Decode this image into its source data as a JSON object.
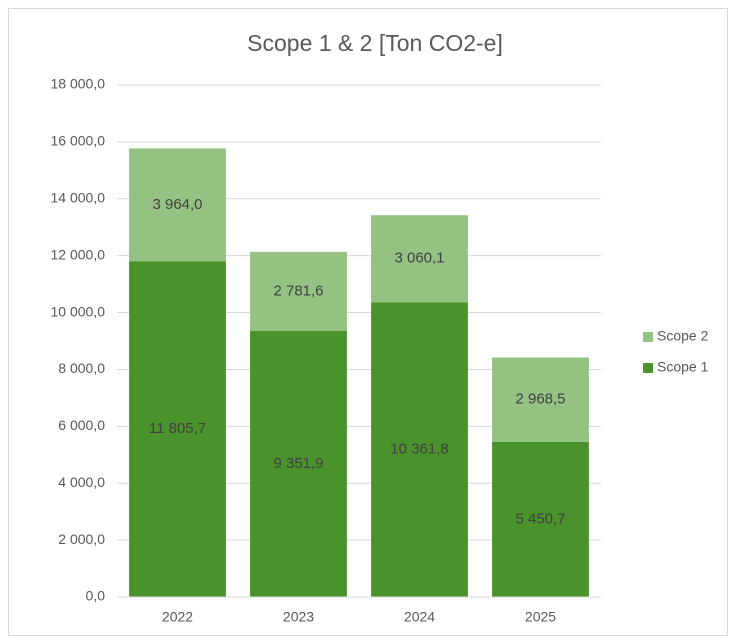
{
  "chart_data": {
    "type": "stacked_bar",
    "title": "Scope 1 & 2 [Ton CO2-e]",
    "categories": [
      "2022",
      "2023",
      "2024",
      "2025"
    ],
    "series": [
      {
        "name": "Scope 1",
        "color": "#4a922c",
        "values": [
          11805.7,
          9351.9,
          10361.8,
          5450.7
        ],
        "value_labels": [
          "11 805,7",
          "9 351,9",
          "10 361,8",
          "5 450,7"
        ]
      },
      {
        "name": "Scope 2",
        "color": "#93c283",
        "values": [
          3964.0,
          2781.6,
          3060.1,
          2968.5
        ],
        "value_labels": [
          "3 964,0",
          "2 781,6",
          "3 060,1",
          "2 968,5"
        ]
      }
    ],
    "ylim": [
      0,
      18000
    ],
    "yticks": [
      {
        "value": 0,
        "label": "0,0"
      },
      {
        "value": 2000,
        "label": "2 000,0"
      },
      {
        "value": 4000,
        "label": "4 000,0"
      },
      {
        "value": 6000,
        "label": "6 000,0"
      },
      {
        "value": 8000,
        "label": "8 000,0"
      },
      {
        "value": 10000,
        "label": "10 000,0"
      },
      {
        "value": 12000,
        "label": "12 000,0"
      },
      {
        "value": 14000,
        "label": "14 000,0"
      },
      {
        "value": 16000,
        "label": "16 000,0"
      },
      {
        "value": 18000,
        "label": "18 000,0"
      }
    ],
    "grid": true,
    "legend": "right"
  }
}
